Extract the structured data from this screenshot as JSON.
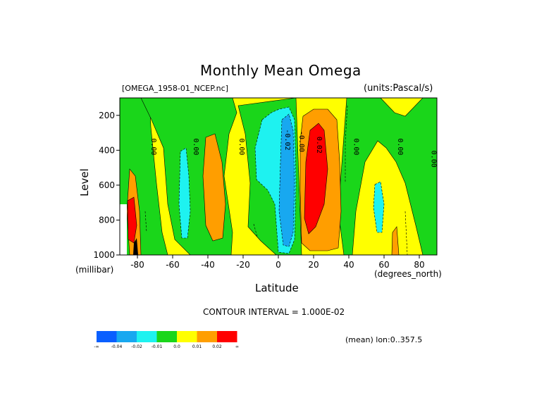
{
  "chart_data": {
    "type": "heatmap",
    "title": "Monthly Mean Omega",
    "file_label": "[OMEGA_1958-01_NCEP.nc]",
    "units_label": "(units:Pascal/s)",
    "xlabel": "Latitude",
    "ylabel": "Level",
    "x_units": "(degrees_north)",
    "y_units": "(millibar)",
    "xlim": [
      -90,
      90
    ],
    "ylim": [
      1000,
      100
    ],
    "x_ticks": [
      -80,
      -60,
      -40,
      -20,
      0,
      20,
      40,
      60,
      80
    ],
    "x_tick_labels": [
      "-80",
      "-60",
      "-40",
      "-20",
      "0",
      "20",
      "40",
      "60",
      "80"
    ],
    "y_ticks": [
      200,
      400,
      600,
      800,
      1000
    ],
    "y_tick_labels": [
      "200",
      "400",
      "600",
      "800",
      "1000"
    ],
    "contour_interval_text": "CONTOUR INTERVAL = 1.000E-02",
    "mean_text": "(mean) lon:0..357.5",
    "contour_labels": [
      {
        "text": "0.00",
        "lat": -72,
        "lev": 380
      },
      {
        "text": "0.00",
        "lat": -48,
        "lev": 380
      },
      {
        "text": "0.00",
        "lat": -22,
        "lev": 380
      },
      {
        "text": "-0.02",
        "lat": 4,
        "lev": 340
      },
      {
        "text": "-0.00",
        "lat": 12,
        "lev": 350
      },
      {
        "text": "0.02",
        "lat": 22,
        "lev": 370
      },
      {
        "text": "0.00",
        "lat": 43,
        "lev": 380
      },
      {
        "text": "0.00",
        "lat": 68,
        "lev": 380
      },
      {
        "text": "0.00",
        "lat": 87,
        "lev": 450
      }
    ],
    "bands": [
      {
        "lat0": -90,
        "lat1": -86,
        "value": 0.0
      },
      {
        "lat0": -86,
        "lat1": -80,
        "value": 0.02
      },
      {
        "lat0": -80,
        "lat1": -70,
        "value": -0.005
      },
      {
        "lat0": -70,
        "lat1": -64,
        "value": 0.0
      },
      {
        "lat0": -64,
        "lat1": -58,
        "value": -0.015
      },
      {
        "lat0": -58,
        "lat1": -48,
        "value": 0.0
      },
      {
        "lat0": -48,
        "lat1": -38,
        "value": 0.015
      },
      {
        "lat0": -38,
        "lat1": -28,
        "value": 0.0
      },
      {
        "lat0": -28,
        "lat1": -8,
        "value": -0.005
      },
      {
        "lat0": -8,
        "lat1": -2,
        "value": -0.015
      },
      {
        "lat0": -2,
        "lat1": 10,
        "value": -0.03
      },
      {
        "lat0": 10,
        "lat1": 14,
        "value": 0.0
      },
      {
        "lat0": 14,
        "lat1": 18,
        "value": 0.015
      },
      {
        "lat0": 18,
        "lat1": 26,
        "value": 0.025
      },
      {
        "lat0": 26,
        "lat1": 32,
        "value": 0.015
      },
      {
        "lat0": 32,
        "lat1": 42,
        "value": 0.0
      },
      {
        "lat0": 42,
        "lat1": 54,
        "value": -0.005
      },
      {
        "lat0": 54,
        "lat1": 60,
        "value": -0.015
      },
      {
        "lat0": 60,
        "lat1": 74,
        "value": 0.0
      },
      {
        "lat0": 74,
        "lat1": 90,
        "value": -0.005
      }
    ],
    "colorbar": {
      "colors": [
        "#0a5fff",
        "#18a8f0",
        "#1ef2f0",
        "#1ad61a",
        "#ffff00",
        "#ff9e00",
        "#ff0000"
      ],
      "labels": [
        "-∞",
        "-0.04",
        "-0.02",
        "-0.01",
        "0.0",
        "0.01",
        "0.02",
        "∞"
      ]
    }
  }
}
